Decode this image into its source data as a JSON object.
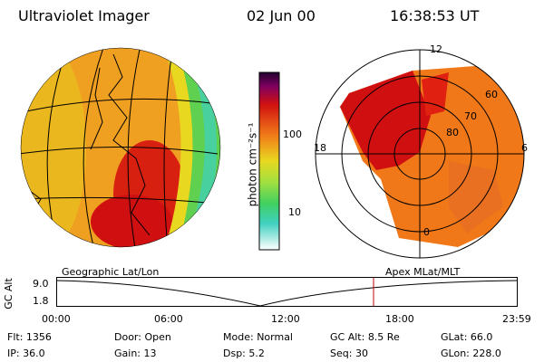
{
  "header": {
    "title": "Ultraviolet Imager",
    "date": "02 Jun 00",
    "time": "16:38:53 UT"
  },
  "colorbar": {
    "label": "photon cm⁻²s⁻¹",
    "ticks": [
      "100",
      "10"
    ],
    "scale": "log"
  },
  "panels": {
    "left_caption": "Geographic Lat/Lon",
    "right_caption": "Apex MLat/MLT"
  },
  "polar": {
    "clock_labels": [
      "12",
      "18",
      "6",
      "0"
    ],
    "lat_labels": [
      "60",
      "70",
      "80"
    ]
  },
  "altplot": {
    "ylabel": "GC Alt",
    "y_ticks": [
      "9.0",
      "1.8"
    ],
    "x_ticks": [
      "00:00",
      "06:00",
      "12:00",
      "18:00",
      "23:59"
    ],
    "marker_color": "#c00000"
  },
  "info": {
    "row1": [
      {
        "label": "Flt:",
        "value": "1356"
      },
      {
        "label": "Door:",
        "value": "Open"
      },
      {
        "label": "Mode:",
        "value": "Normal"
      },
      {
        "label": "GC Alt:",
        "value": "8.5 Re"
      },
      {
        "label": "GLat:",
        "value": "66.0"
      }
    ],
    "row2": [
      {
        "label": "IP:",
        "value": "36.0"
      },
      {
        "label": "Gain:",
        "value": "13"
      },
      {
        "label": "Dsp:",
        "value": "5.2"
      },
      {
        "label": "Seq:",
        "value": "30"
      },
      {
        "label": "GLon:",
        "value": "228.0"
      }
    ]
  },
  "colors": {
    "aurora_red": "#d01010",
    "aurora_orange": "#f07818",
    "aurora_yellow": "#e8d820",
    "aurora_green": "#58d050",
    "aurora_cyan": "#40d0c0"
  }
}
